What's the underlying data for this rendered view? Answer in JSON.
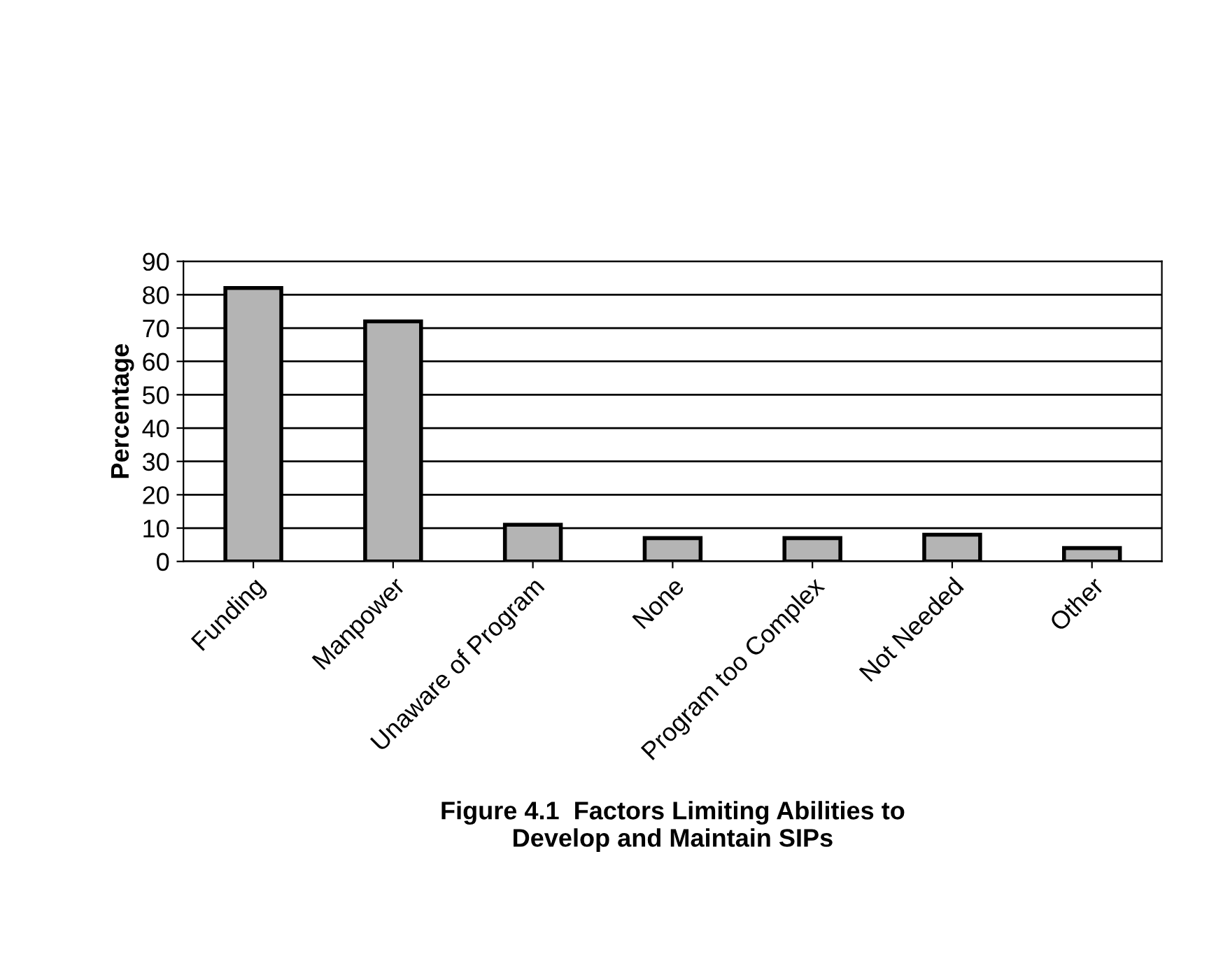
{
  "chart_data": {
    "type": "bar",
    "title": "Figure 4.1  Factors Limiting Abilities to\nDevelop and Maintain SIPs",
    "ylabel": "Percentage",
    "categories": [
      "Funding",
      "Manpower",
      "Unaware of Program",
      "None",
      "Program too Complex",
      "Not Needed",
      "Other"
    ],
    "values": [
      82,
      72,
      11,
      7,
      7,
      8,
      4
    ],
    "color": "#b4b4b4",
    "ylim": [
      0,
      90
    ],
    "yticks": [
      0,
      10,
      20,
      30,
      40,
      50,
      60,
      70,
      80,
      90
    ],
    "grid": "y",
    "legend": false
  }
}
